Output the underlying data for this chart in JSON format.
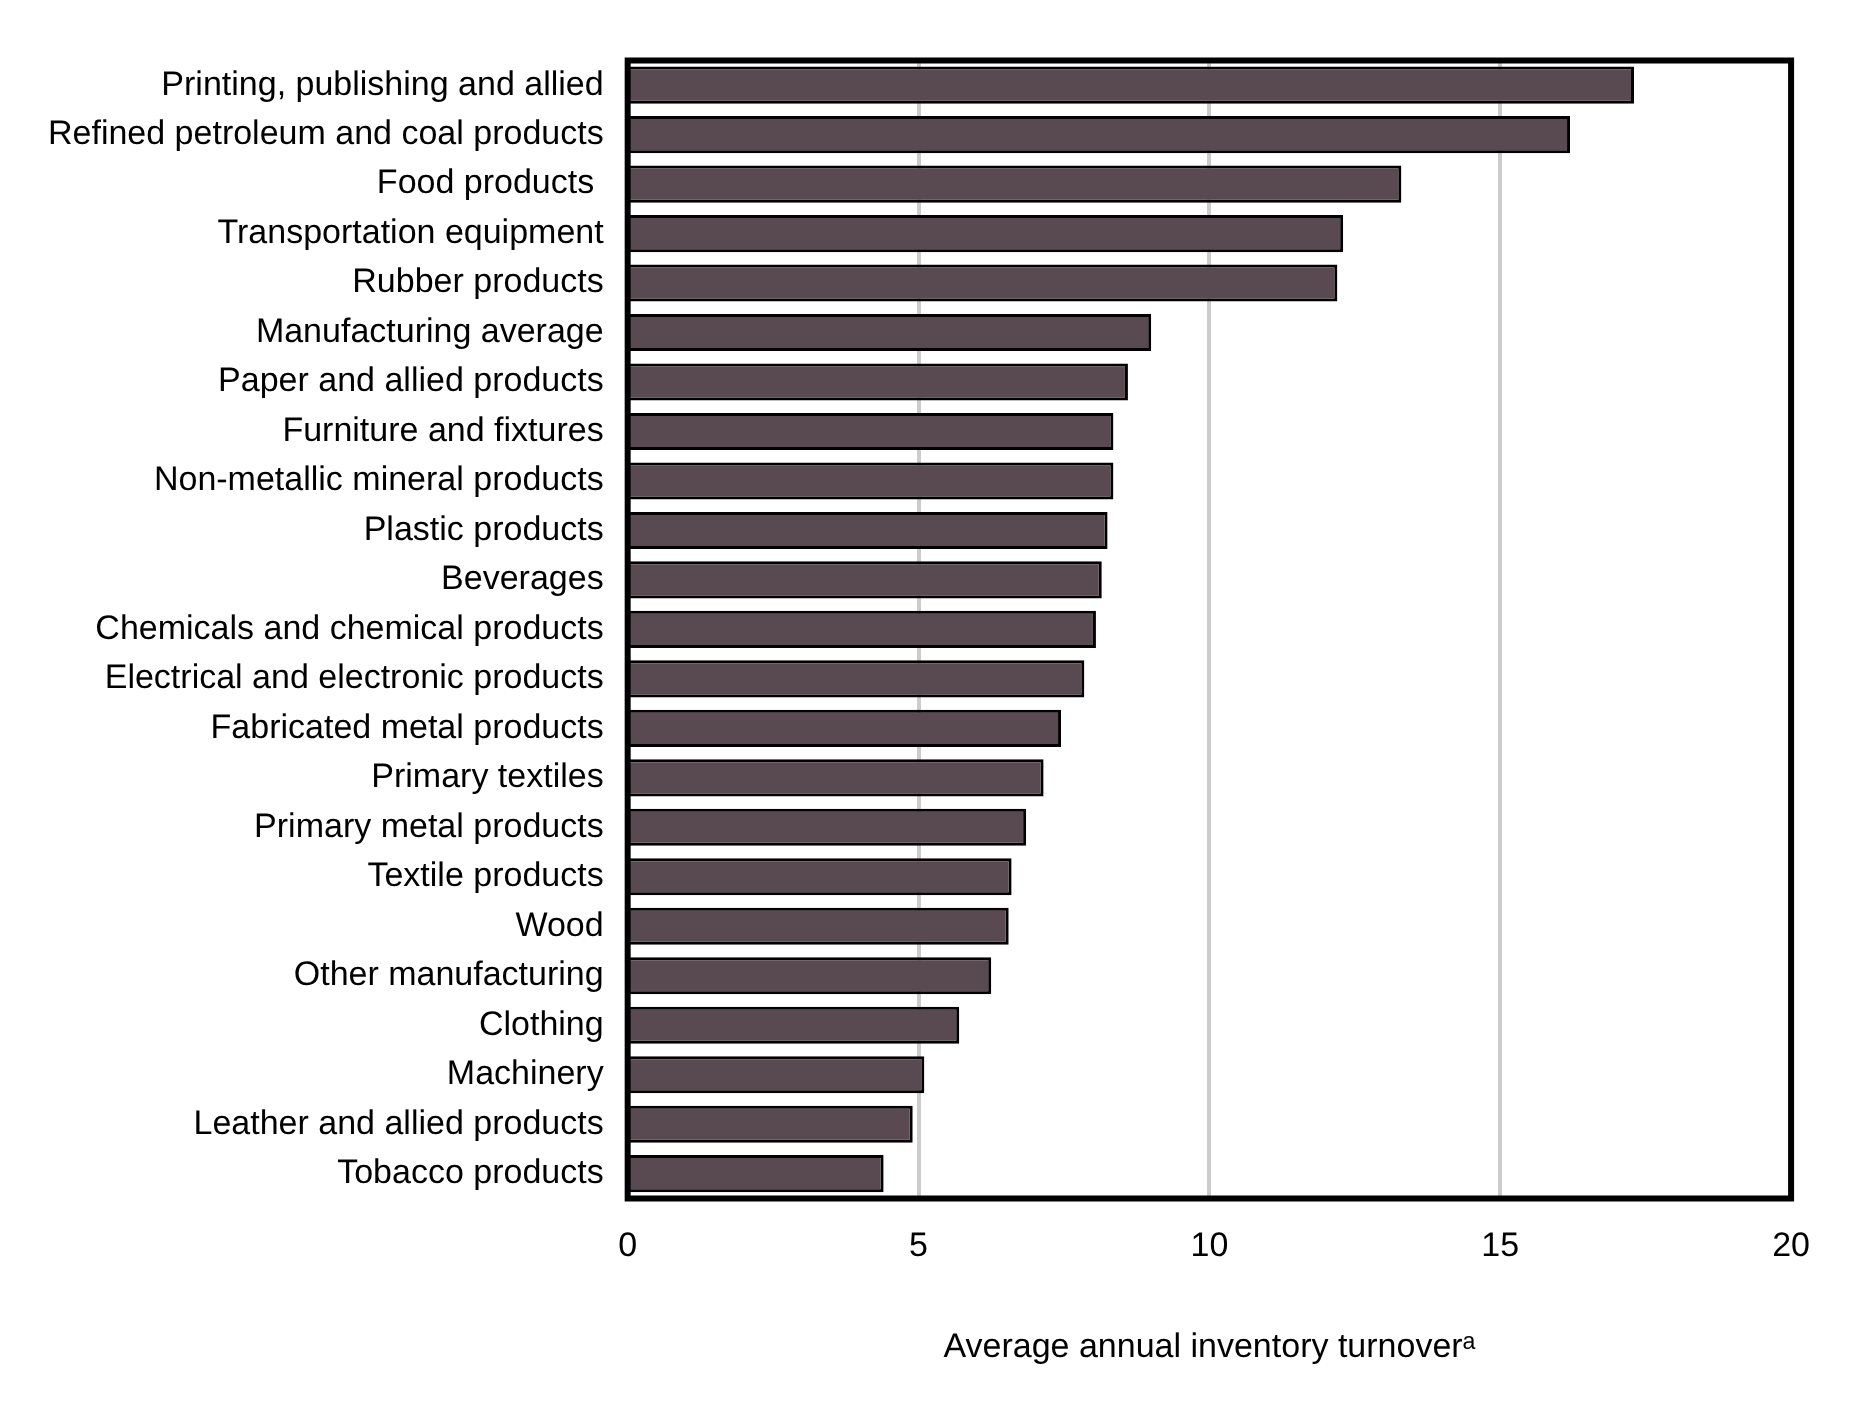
{
  "chart_data": {
    "type": "bar",
    "orientation": "horizontal",
    "xlabel": "Average annual inventory turnoverᵃ",
    "categories": [
      "Printing, publishing and allied",
      "Refined petroleum and coal products",
      "Food products ",
      "Transportation equipment",
      "Rubber products",
      "Manufacturing average",
      "Paper and allied products",
      "Furniture and fixtures",
      "Non-metallic mineral products",
      "Plastic products",
      "Beverages",
      "Chemicals and chemical products",
      "Electrical and electronic products",
      "Fabricated metal products",
      "Primary textiles",
      "Primary metal products",
      "Textile products",
      "Wood",
      "Other manufacturing",
      "Clothing",
      "Machinery",
      "Leather and allied products",
      "Tobacco products"
    ],
    "values": [
      17.3,
      16.2,
      13.3,
      12.3,
      12.2,
      9.0,
      8.6,
      8.35,
      8.35,
      8.25,
      8.15,
      8.05,
      7.85,
      7.45,
      7.15,
      6.85,
      6.6,
      6.55,
      6.25,
      5.7,
      5.1,
      4.9,
      4.4
    ],
    "color": "#594a51",
    "xlim": [
      0,
      20
    ],
    "xticks": [
      0,
      5,
      10,
      15,
      20
    ],
    "grid": "x"
  }
}
